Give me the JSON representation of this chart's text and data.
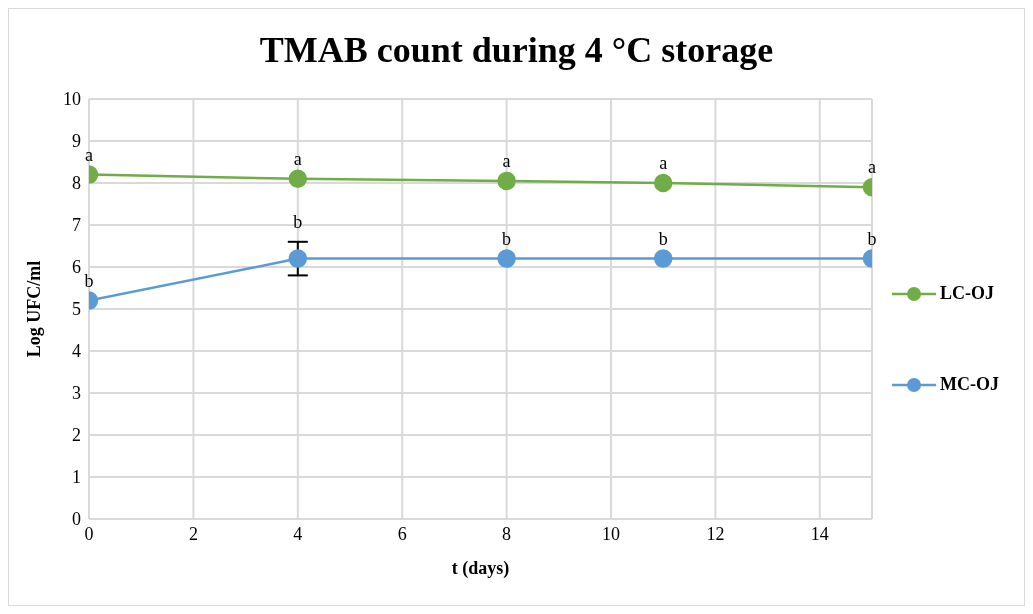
{
  "chart_data": {
    "type": "line",
    "title": "TMAB count during 4 °C storage",
    "xlabel": "t (days)",
    "ylabel": "Log UFC/ml",
    "x": [
      0,
      4,
      8,
      11,
      15
    ],
    "series": [
      {
        "name": "LC-OJ",
        "color": "#70ad47",
        "values": [
          8.2,
          8.1,
          8.05,
          8.0,
          7.9
        ]
      },
      {
        "name": "MC-OJ",
        "color": "#5b9bd5",
        "values": [
          5.2,
          6.2,
          6.2,
          6.2,
          6.2
        ],
        "errors": [
          null,
          0.4,
          null,
          null,
          null
        ]
      }
    ],
    "annotations": [
      {
        "text": "a",
        "x": 0,
        "y": 8.2
      },
      {
        "text": "a",
        "x": 4,
        "y": 8.1
      },
      {
        "text": "a",
        "x": 8,
        "y": 8.05
      },
      {
        "text": "a",
        "x": 11,
        "y": 8.0
      },
      {
        "text": "a",
        "x": 15,
        "y": 7.9
      },
      {
        "text": "b",
        "x": 0,
        "y": 5.2
      },
      {
        "text": "b",
        "x": 4,
        "y": 6.2
      },
      {
        "text": "b",
        "x": 8,
        "y": 6.2
      },
      {
        "text": "b",
        "x": 11,
        "y": 6.2
      },
      {
        "text": "b",
        "x": 15,
        "y": 6.2
      }
    ],
    "xlim": [
      0,
      15
    ],
    "xticks": [
      0,
      2,
      4,
      6,
      8,
      10,
      12,
      14
    ],
    "ylim": [
      0,
      10
    ],
    "yticks": [
      0,
      1,
      2,
      3,
      4,
      5,
      6,
      7,
      8,
      9,
      10
    ],
    "grid": true,
    "legend": "right",
    "marker": "circle",
    "line_style": "solid"
  }
}
